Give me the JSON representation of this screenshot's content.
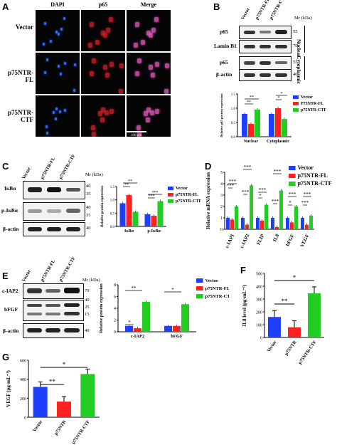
{
  "panels": {
    "A": {
      "letter": "A",
      "columns": [
        "DAPI",
        "p65",
        "Merge"
      ],
      "rows": [
        "Vector",
        "p75NTR-FL",
        "p75NTR-CTF"
      ],
      "scale_bar": "100 μm",
      "colors": {
        "dapi": "#2f6cff",
        "p65": "#d8202a",
        "merge": "#e85cc0"
      }
    },
    "B": {
      "letter": "B",
      "lanes": [
        "Vector",
        "p75NTR-FL",
        "p75NTR-CTF"
      ],
      "mr_label": "Mr (kDa)",
      "blots": [
        {
          "label": "p65",
          "mw": [
            "55"
          ]
        },
        {
          "label": "Lamin B1",
          "mw": [
            "70"
          ]
        },
        {
          "label": "p65",
          "mw": [
            "55"
          ]
        },
        {
          "label": "β-actin",
          "mw": [
            "40"
          ]
        }
      ],
      "side_labels": [
        "Nuclear",
        "Cytoplasmic"
      ]
    },
    "C": {
      "letter": "C",
      "lanes": [
        "Vector",
        "p75NTR-FL",
        "p75NTR-CTF"
      ],
      "mr_label": "Mr (kDa)",
      "blots": [
        {
          "label": "IκBα",
          "mw": [
            "40",
            "35"
          ]
        },
        {
          "label": "p-IκBα",
          "mw": [
            "40",
            "35"
          ]
        },
        {
          "label": "β-actin",
          "mw": [
            "40"
          ]
        }
      ]
    },
    "D": {
      "letter": "D"
    },
    "E": {
      "letter": "E",
      "lanes": [
        "Vector",
        "p75NTR-FL",
        "p75NTR-CTF"
      ],
      "mr_label": "Mr (kDa)",
      "blots": [
        {
          "label": "c-IAP2",
          "mw": [
            "70"
          ]
        },
        {
          "label": "bFGF",
          "mw": [
            "40",
            "25",
            "15"
          ]
        },
        {
          "label": "β-actin",
          "mw": [
            "40"
          ]
        }
      ]
    },
    "F": {
      "letter": "F"
    },
    "G": {
      "letter": "G"
    }
  },
  "chart_data": [
    {
      "id": "B-chart",
      "type": "bar",
      "categories": [
        "Nuclear",
        "Cytoplasmic"
      ],
      "series": [
        {
          "name": "Vector",
          "color": "#1f3fff",
          "values": [
            0.8,
            0.8
          ]
        },
        {
          "name": "P75NTR-FL",
          "color": "#ff2020",
          "values": [
            0.45,
            1.0
          ]
        },
        {
          "name": "p75NTR-CTF",
          "color": "#22cc22",
          "values": [
            0.95,
            0.62
          ]
        }
      ],
      "ylabel": "Relative p65 protein expression",
      "ylim": [
        0,
        1.5
      ],
      "yticks": [
        "0.0",
        "0.5",
        "1.0",
        "1.5"
      ],
      "sig": [
        "**",
        "**",
        "*",
        "*"
      ],
      "legend": "top-right"
    },
    {
      "id": "C-chart",
      "type": "bar",
      "categories": [
        "IκBα",
        "p-IκBα"
      ],
      "series": [
        {
          "name": "Vector",
          "color": "#1f3fff",
          "values": [
            0.87,
            0.46
          ]
        },
        {
          "name": "p75NTR-FL",
          "color": "#ff2020",
          "values": [
            1.18,
            0.4
          ]
        },
        {
          "name": "p75NTR-CTF",
          "color": "#22cc22",
          "values": [
            0.55,
            0.95
          ]
        }
      ],
      "ylabel": "Relative protein expression",
      "ylim": [
        0,
        1.5
      ],
      "yticks": [
        "0.0",
        "0.5",
        "1.0",
        "1.5"
      ],
      "sig": [
        "**",
        "**",
        "***",
        "***"
      ],
      "legend": "top-right"
    },
    {
      "id": "D-chart",
      "type": "bar",
      "categories": [
        "c-IAP1",
        "c-IAP2",
        "FLIP",
        "IL8",
        "bFGF",
        "VEGF"
      ],
      "series": [
        {
          "name": "Vector",
          "color": "#1f3fff",
          "values": [
            1.0,
            1.0,
            1.0,
            1.0,
            1.0,
            1.0
          ]
        },
        {
          "name": "p75NTR-FL",
          "color": "#ff2020",
          "values": [
            0.85,
            0.4,
            0.75,
            0.2,
            0.6,
            0.4
          ]
        },
        {
          "name": "p75NTR-CTF",
          "color": "#22cc22",
          "values": [
            2.0,
            3.85,
            2.15,
            3.4,
            2.0,
            1.2
          ]
        }
      ],
      "ylabel": "Relative mRNA expression",
      "ylim": [
        0,
        5
      ],
      "yticks": [
        "0",
        "1",
        "2",
        "3",
        "4",
        "5"
      ],
      "sig": [
        "***",
        "***",
        "***",
        "***",
        "*",
        "***",
        "***",
        "***",
        "*",
        "***",
        "***",
        "***"
      ],
      "legend": "top-right"
    },
    {
      "id": "E-chart",
      "type": "bar",
      "categories": [
        "c-IAP2",
        "bFGF"
      ],
      "series": [
        {
          "name": "Vector",
          "color": "#1f3fff",
          "values": [
            1.0,
            1.0
          ]
        },
        {
          "name": "p75NTR-FL",
          "color": "#ff2020",
          "values": [
            0.6,
            1.0
          ]
        },
        {
          "name": "p75NTR-CTF",
          "color": "#22cc22",
          "values": [
            5.1,
            4.7
          ]
        }
      ],
      "ylabel": "Relative protein expression",
      "ylim": [
        0,
        8
      ],
      "yticks": [
        "0",
        "2",
        "4",
        "6",
        "8"
      ],
      "sig": [
        "*",
        "**",
        "*"
      ],
      "legend": "top-right"
    },
    {
      "id": "F-chart",
      "type": "bar",
      "categories": [
        "Vector",
        "p75NTR",
        "p75NTR-CTF"
      ],
      "values": [
        160,
        80,
        345
      ],
      "colors": [
        "#1f3fff",
        "#ff2020",
        "#22cc22"
      ],
      "ylabel": "IL8 level (pg·mL⁻¹)",
      "ylim": [
        0,
        500
      ],
      "yticks": [
        "0",
        "100",
        "200",
        "300",
        "400",
        "500"
      ],
      "sig": [
        "**",
        "*"
      ]
    },
    {
      "id": "G-chart",
      "type": "bar",
      "categories": [
        "Vector",
        "p75NTR",
        "p75NTR-CTF"
      ],
      "values": [
        320,
        165,
        455
      ],
      "colors": [
        "#1f3fff",
        "#ff2020",
        "#22cc22"
      ],
      "ylabel": "VEGF (pg·mL⁻¹)",
      "ylim": [
        0,
        600
      ],
      "yticks": [
        "0",
        "200",
        "400",
        "600"
      ],
      "sig": [
        "**",
        "*"
      ]
    }
  ]
}
